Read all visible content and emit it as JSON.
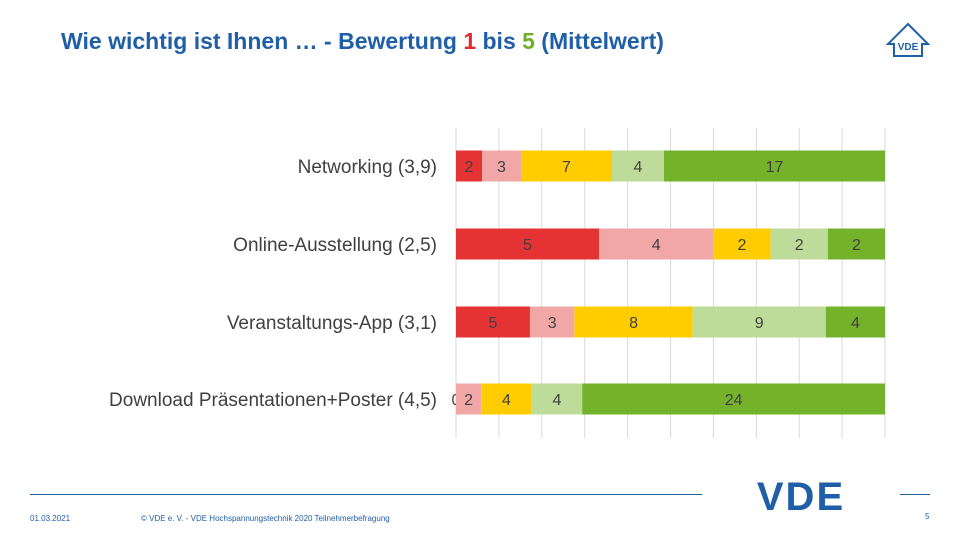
{
  "title": {
    "prefix": "Wie wichtig ist Ihnen … - Bewertung ",
    "num1": "1",
    "middle": " bis ",
    "num5": "5",
    "suffix": " (Mittelwert)"
  },
  "logo_small_text": "VDE",
  "logo_big_text": "VDE",
  "footer": {
    "date": "01.03.2021",
    "copyright": "© VDE e. V. - VDE Hochspannungstechnik 2020 Teilnehmerbefragung",
    "page": "5"
  },
  "colors": {
    "brand_blue": "#1f5fa8",
    "rating_1": "#e53333",
    "rating_2": "#f2a7a7",
    "rating_3": "#ffcc00",
    "rating_4": "#bddc9a",
    "rating_5": "#75b22b"
  },
  "chart_data": {
    "type": "bar",
    "orientation": "horizontal",
    "stacked": "100%",
    "categories": [
      "Networking (3,9)",
      "Online-Ausstellung (2,5)",
      "Veranstaltungs-App (3,1)",
      "Download Präsentationen+Poster (4,5)"
    ],
    "series": [
      {
        "values": [
          2,
          5,
          5,
          0
        ]
      },
      {
        "values": [
          3,
          4,
          3,
          2
        ]
      },
      {
        "values": [
          7,
          2,
          8,
          4
        ]
      },
      {
        "values": [
          4,
          2,
          9,
          4
        ]
      },
      {
        "values": [
          17,
          2,
          4,
          24
        ]
      }
    ],
    "grid": true
  }
}
